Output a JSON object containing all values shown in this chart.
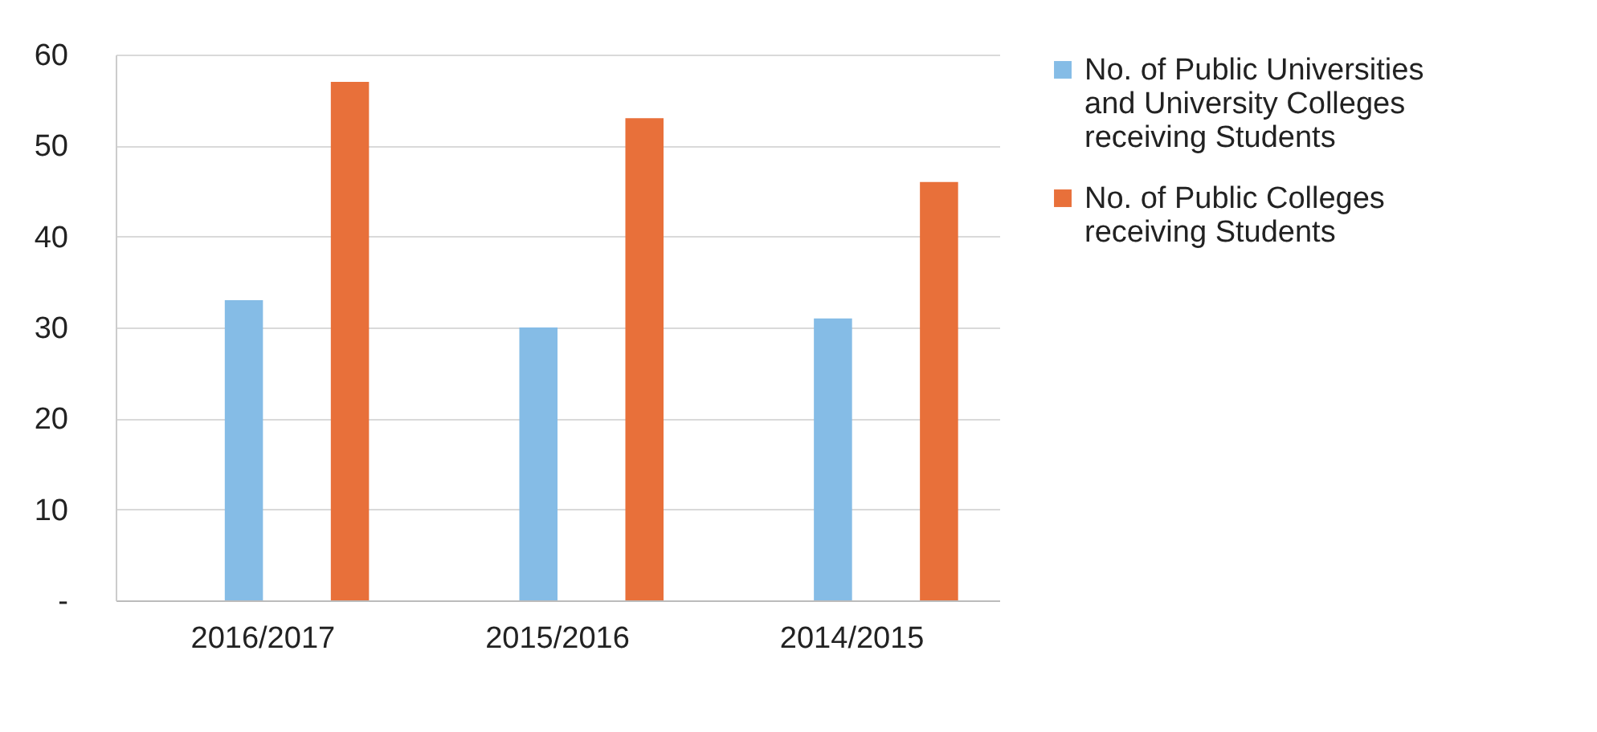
{
  "chart_data": {
    "type": "bar",
    "categories": [
      "2016/2017",
      "2015/2016",
      "2014/2015"
    ],
    "series": [
      {
        "name": "No. of Public Universities and University Colleges receiving Students",
        "color": "#85bce6",
        "values": [
          33,
          30,
          31
        ]
      },
      {
        "name": "No. of  Public Colleges receiving Students",
        "color": "#e8703a",
        "values": [
          57,
          53,
          46
        ]
      }
    ],
    "ylim": [
      0,
      60
    ],
    "yticks": [
      {
        "value": 0,
        "label": "-"
      },
      10,
      20,
      30,
      40,
      50,
      60
    ],
    "grid": "y",
    "legend": "right"
  }
}
